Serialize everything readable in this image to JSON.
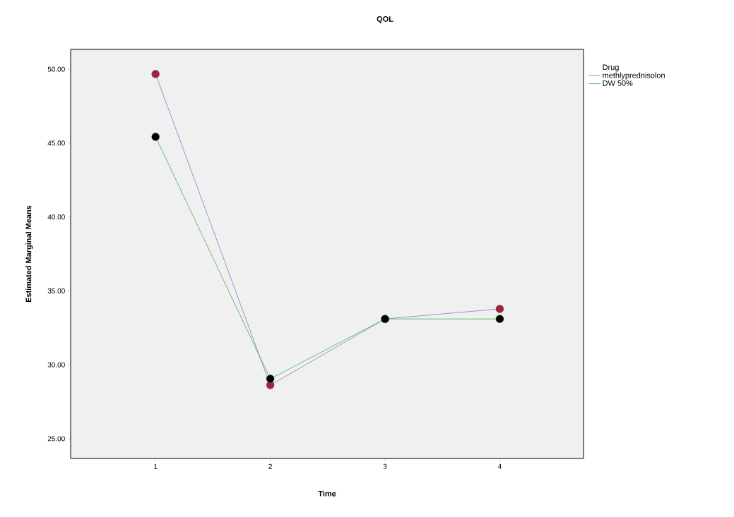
{
  "chart_data": {
    "type": "line",
    "title": "QOL",
    "xlabel": "Time",
    "ylabel": "Estimated Marginal Means",
    "legend_title": "Drug",
    "categories": [
      "1",
      "2",
      "3",
      "4"
    ],
    "series": [
      {
        "name": "methlyprednisolon",
        "color": "#7b7fc4",
        "colors": [
          "#a3233f",
          "#a3233f",
          "#a3233f",
          "#a3233f"
        ],
        "values": [
          49.67,
          28.62,
          33.1,
          33.78
        ]
      },
      {
        "name": "DW 50%",
        "color": "#3fae5a",
        "colors": [
          "#000000",
          "#000000",
          "#000000",
          "#000000"
        ],
        "values": [
          45.42,
          29.05,
          33.1,
          33.1
        ]
      }
    ],
    "ylim": [
      23.66,
      51.34
    ],
    "yticks": [
      {
        "value": 25,
        "label": "25.00"
      },
      {
        "value": 30,
        "label": "30.00"
      },
      {
        "value": 35,
        "label": "35.00"
      },
      {
        "value": 40,
        "label": "40.00"
      },
      {
        "value": 45,
        "label": "45.00"
      },
      {
        "value": 50,
        "label": "50.00"
      }
    ],
    "marker": "circle",
    "line_style": "solid",
    "legend": "top right",
    "grid": false
  }
}
